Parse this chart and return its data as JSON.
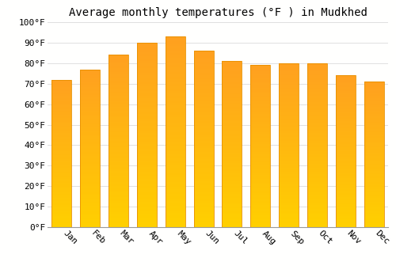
{
  "months": [
    "Jan",
    "Feb",
    "Mar",
    "Apr",
    "May",
    "Jun",
    "Jul",
    "Aug",
    "Sep",
    "Oct",
    "Nov",
    "Dec"
  ],
  "values": [
    72,
    77,
    84,
    90,
    93,
    86,
    81,
    79,
    80,
    80,
    74,
    71
  ],
  "bar_color_bottom": "#FFD000",
  "bar_color_top": "#FFA020",
  "bar_edge_color": "#E89000",
  "title": "Average monthly temperatures (°F ) in Mudkhed",
  "ylim": [
    0,
    100
  ],
  "yticks": [
    0,
    10,
    20,
    30,
    40,
    50,
    60,
    70,
    80,
    90,
    100
  ],
  "ytick_labels": [
    "0°F",
    "10°F",
    "20°F",
    "30°F",
    "40°F",
    "50°F",
    "60°F",
    "70°F",
    "80°F",
    "90°F",
    "100°F"
  ],
  "background_color": "#FFFFFE",
  "grid_color": "#E0E0E0",
  "title_fontsize": 10,
  "tick_fontsize": 8,
  "font_family": "monospace",
  "bar_width": 0.7,
  "n_grad": 80
}
